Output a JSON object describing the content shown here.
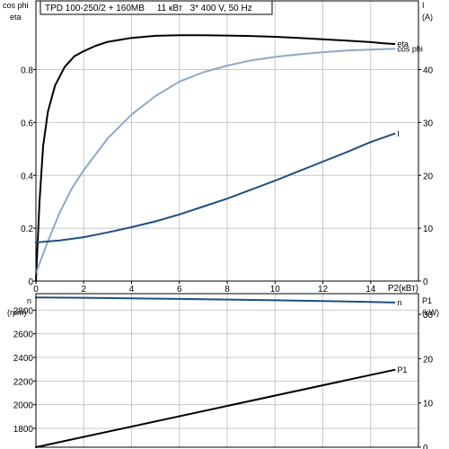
{
  "chart_data": [
    {
      "type": "line",
      "title": "TPD 100-250/2 + 160MB     11 кВт   3* 400 V, 50 Hz",
      "xlabel": "P2(кВт)",
      "xlim": [
        0,
        16
      ],
      "xticks": [
        0,
        2,
        4,
        6,
        8,
        10,
        12,
        14
      ],
      "y_left": {
        "label_top": "cos phi",
        "label_bottom": "eta",
        "lim": [
          0,
          1.06
        ],
        "ticks": [
          0,
          0.2,
          0.4,
          0.6,
          0.8
        ]
      },
      "y_right": {
        "label_top": "I",
        "label_bottom": "(A)",
        "lim": [
          0,
          53
        ],
        "ticks": [
          0,
          10,
          20,
          30,
          40
        ]
      },
      "grid": true,
      "series": [
        {
          "name": "eta",
          "axis": "left",
          "color": "#000000",
          "x": [
            0,
            0.15,
            0.3,
            0.5,
            0.8,
            1.2,
            1.6,
            2,
            2.5,
            3,
            4,
            5,
            6,
            7,
            8,
            9,
            10,
            11,
            12,
            13,
            14,
            14.5,
            15
          ],
          "y": [
            0,
            0.3,
            0.51,
            0.64,
            0.74,
            0.81,
            0.85,
            0.87,
            0.89,
            0.905,
            0.92,
            0.928,
            0.93,
            0.93,
            0.929,
            0.927,
            0.924,
            0.92,
            0.915,
            0.91,
            0.904,
            0.9,
            0.897
          ]
        },
        {
          "name": "cos phi",
          "axis": "left",
          "color": "#8fa8c8",
          "x": [
            0,
            0.5,
            1,
            1.5,
            2,
            3,
            4,
            5,
            6,
            7,
            8,
            9,
            10,
            11,
            12,
            13,
            14,
            15
          ],
          "y": [
            0.03,
            0.15,
            0.26,
            0.35,
            0.42,
            0.54,
            0.63,
            0.7,
            0.755,
            0.79,
            0.815,
            0.835,
            0.848,
            0.858,
            0.866,
            0.872,
            0.876,
            0.879
          ]
        },
        {
          "name": "I",
          "axis": "right",
          "color": "#1f4f82",
          "x": [
            0,
            1,
            2,
            3,
            4,
            5,
            6,
            7,
            8,
            9,
            10,
            11,
            12,
            13,
            14,
            15
          ],
          "y": [
            7.3,
            7.7,
            8.3,
            9.2,
            10.2,
            11.3,
            12.6,
            14.1,
            15.6,
            17.3,
            19,
            20.8,
            22.6,
            24.4,
            26.3,
            27.9
          ]
        }
      ]
    },
    {
      "type": "line",
      "xlim": [
        0,
        16
      ],
      "y_left": {
        "label_top": "n",
        "label_bottom": "(rpm)",
        "lim": [
          1640,
          2940
        ],
        "ticks": [
          1800,
          2000,
          2200,
          2400,
          2600,
          2800
        ]
      },
      "y_right": {
        "label_top": "P1",
        "label_bottom": "(kW)",
        "lim": [
          0,
          34.7
        ],
        "ticks": [
          0,
          10,
          20,
          30
        ]
      },
      "grid": true,
      "series": [
        {
          "name": "n",
          "axis": "left",
          "color": "#1f4f82",
          "x": [
            0,
            2,
            4,
            6,
            8,
            10,
            12,
            14,
            15
          ],
          "y": [
            2908,
            2905,
            2900,
            2895,
            2890,
            2884,
            2877,
            2870,
            2865
          ]
        },
        {
          "name": "P1",
          "axis": "right",
          "color": "#000000",
          "x": [
            0,
            15
          ],
          "y": [
            0,
            17.5
          ]
        }
      ]
    }
  ]
}
